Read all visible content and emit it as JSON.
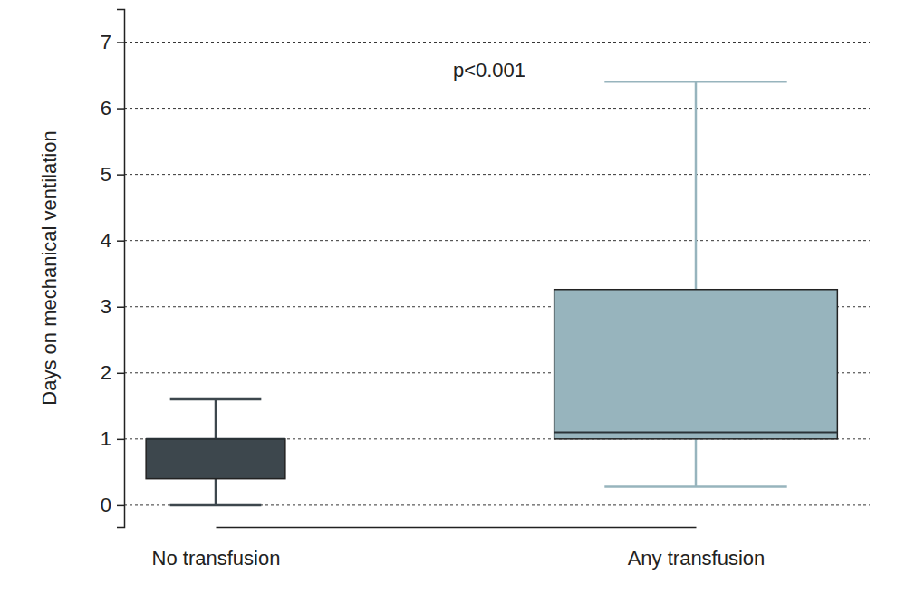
{
  "chart_data": {
    "type": "box",
    "annotation": "p<0.001",
    "y_label": "Days on mechanical ventilation",
    "categories": [
      "No transfusion",
      "Any transfusion"
    ],
    "values": [
      {
        "whisker_low": 0,
        "q1": 0.4,
        "median": 1.0,
        "q3": 1.0,
        "whisker_high": 1.6
      },
      {
        "whisker_low": 0.28,
        "q1": 1.0,
        "median": 1.1,
        "q3": 3.26,
        "whisker_high": 6.4
      }
    ],
    "colors": [
      "#3d474d",
      "#97b4bd"
    ],
    "ylim": [
      -0.33,
      7.5
    ],
    "yticks": [
      0,
      1,
      2,
      3,
      4,
      5,
      6,
      7
    ],
    "grid": true
  }
}
